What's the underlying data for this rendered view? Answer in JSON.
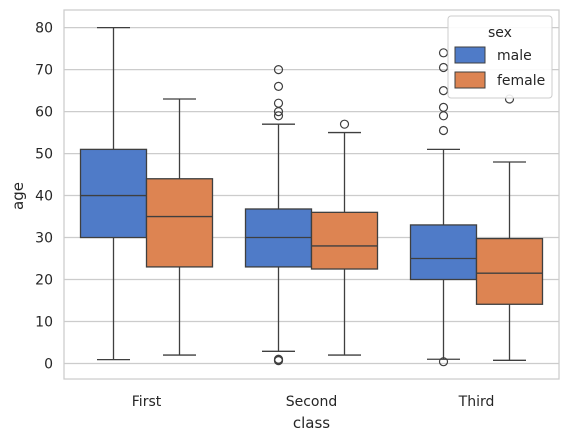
{
  "chart_data": {
    "type": "box",
    "xlabel": "class",
    "ylabel": "age",
    "categories": [
      "First",
      "Second",
      "Third"
    ],
    "ylim": [
      -3.7,
      84.2
    ],
    "yticks": [
      0,
      10,
      20,
      30,
      40,
      50,
      60,
      70,
      80
    ],
    "grid": "horizontal",
    "legend": {
      "title": "sex",
      "placement": "top-right"
    },
    "series": [
      {
        "name": "male",
        "color": "#4f7bc8",
        "boxes": [
          {
            "whisker_low": 0.92,
            "q1": 30,
            "median": 40,
            "q3": 51,
            "whisker_high": 80,
            "outliers": []
          },
          {
            "whisker_low": 2.9,
            "q1": 23,
            "median": 30,
            "q3": 36.8,
            "whisker_high": 57,
            "outliers": [
              0.67,
              0.83,
              1.0,
              59,
              60,
              62,
              66,
              70
            ]
          },
          {
            "whisker_low": 1,
            "q1": 20,
            "median": 25,
            "q3": 33,
            "whisker_high": 51,
            "outliers": [
              0.42,
              55.5,
              59,
              61,
              65,
              70.5,
              74
            ]
          }
        ]
      },
      {
        "name": "female",
        "color": "#dd8452",
        "boxes": [
          {
            "whisker_low": 2,
            "q1": 23,
            "median": 35,
            "q3": 44,
            "whisker_high": 63,
            "outliers": []
          },
          {
            "whisker_low": 2,
            "q1": 22.5,
            "median": 28,
            "q3": 36,
            "whisker_high": 55,
            "outliers": [
              57
            ]
          },
          {
            "whisker_low": 0.75,
            "q1": 14.1,
            "median": 21.5,
            "q3": 29.75,
            "whisker_high": 48,
            "outliers": [
              63
            ]
          }
        ]
      }
    ]
  }
}
